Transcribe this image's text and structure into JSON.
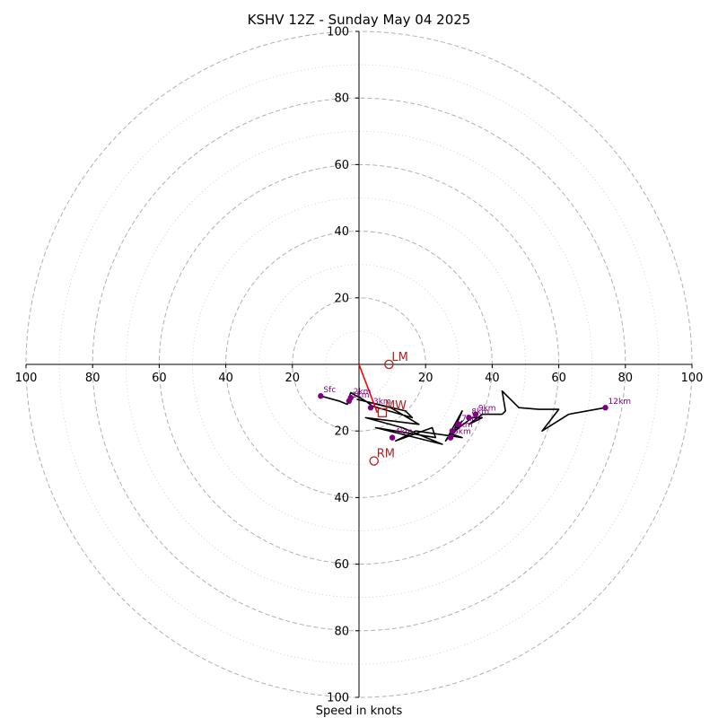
{
  "chart_data": {
    "type": "hodograph",
    "title": "KSHV 12Z - Sunday May 04 2025",
    "xlabel": "Speed in knots",
    "ylabel": "",
    "range": [
      -100,
      100
    ],
    "rings_major": [
      20,
      40,
      60,
      80,
      100
    ],
    "rings_minor": [
      10,
      30,
      50,
      70,
      90
    ],
    "ticks": {
      "x": [
        {
          "v": -100,
          "label": "100"
        },
        {
          "v": -80,
          "label": "80"
        },
        {
          "v": -60,
          "label": "60"
        },
        {
          "v": -40,
          "label": "40"
        },
        {
          "v": -20,
          "label": "20"
        },
        {
          "v": 20,
          "label": "20"
        },
        {
          "v": 40,
          "label": "40"
        },
        {
          "v": 60,
          "label": "60"
        },
        {
          "v": 80,
          "label": "80"
        },
        {
          "v": 100,
          "label": "100"
        }
      ],
      "y": [
        {
          "v": 100,
          "label": "100"
        },
        {
          "v": 80,
          "label": "80"
        },
        {
          "v": 60,
          "label": "60"
        },
        {
          "v": 40,
          "label": "40"
        },
        {
          "v": 20,
          "label": "20"
        },
        {
          "v": -20,
          "label": "20"
        },
        {
          "v": -40,
          "label": "40"
        },
        {
          "v": -60,
          "label": "60"
        },
        {
          "v": -80,
          "label": "80"
        },
        {
          "v": -100,
          "label": "100"
        }
      ]
    },
    "grid": true,
    "trace": [
      [
        -11.5,
        -9.5
      ],
      [
        -6,
        -11
      ],
      [
        -3.5,
        -12
      ],
      [
        -2.5,
        -8.5
      ],
      [
        2,
        -11
      ],
      [
        4,
        -12.5
      ],
      [
        9,
        -14
      ],
      [
        16,
        -16
      ],
      [
        14,
        -14
      ],
      [
        -0.5,
        -10.5
      ],
      [
        9.5,
        -13
      ],
      [
        18,
        -18
      ],
      [
        10,
        -17
      ],
      [
        2,
        -16
      ],
      [
        13,
        -19
      ],
      [
        25,
        -24
      ],
      [
        5,
        -19
      ],
      [
        23,
        -22
      ],
      [
        22,
        -19
      ],
      [
        11,
        -23
      ],
      [
        17,
        -20
      ],
      [
        31,
        -22
      ],
      [
        28,
        -21
      ],
      [
        31,
        -17
      ],
      [
        26,
        -23
      ],
      [
        31,
        -14
      ],
      [
        28,
        -21
      ],
      [
        30,
        -19
      ],
      [
        34,
        -16
      ],
      [
        37,
        -16
      ],
      [
        33,
        -18
      ],
      [
        37,
        -15
      ],
      [
        43,
        -15
      ],
      [
        44,
        -14
      ],
      [
        43,
        -8
      ],
      [
        48,
        -13
      ],
      [
        54,
        -13.5
      ],
      [
        60,
        -13.5
      ],
      [
        55,
        -20
      ],
      [
        63,
        -15
      ],
      [
        74,
        -13
      ]
    ],
    "height_markers": [
      {
        "label": "Sfc",
        "u": -11.5,
        "v": -9.5
      },
      {
        "label": "1km",
        "u": -3,
        "v": -11
      },
      {
        "label": "2km",
        "u": -2.5,
        "v": -10
      },
      {
        "label": "3km",
        "u": 3.5,
        "v": -13
      },
      {
        "label": "4km",
        "u": 10,
        "v": -22
      },
      {
        "label": "5km",
        "u": 27.5,
        "v": -22
      },
      {
        "label": "6km",
        "u": 28,
        "v": -20
      },
      {
        "label": "7km",
        "u": 30,
        "v": -18
      },
      {
        "label": "8km",
        "u": 33,
        "v": -16
      },
      {
        "label": "9km",
        "u": 35,
        "v": -15
      },
      {
        "label": "12km",
        "u": 74,
        "v": -13
      }
    ],
    "storm_motion": [
      {
        "label": "LM",
        "u": 9,
        "v": 0
      },
      {
        "label": "RM",
        "u": 4.5,
        "v": -29
      }
    ],
    "mean_wind": {
      "label": "MW",
      "u": 7,
      "v": -14.5
    },
    "shear_vector": {
      "from": [
        0,
        0
      ],
      "to": [
        5.5,
        -14.5
      ]
    },
    "colors": {
      "trace": "#000000",
      "markers": "#800080",
      "storm": "#b22222",
      "shear": "#ff0000",
      "grid_major": "#b0b0b0",
      "grid_minor": "#c8c8c8"
    }
  }
}
